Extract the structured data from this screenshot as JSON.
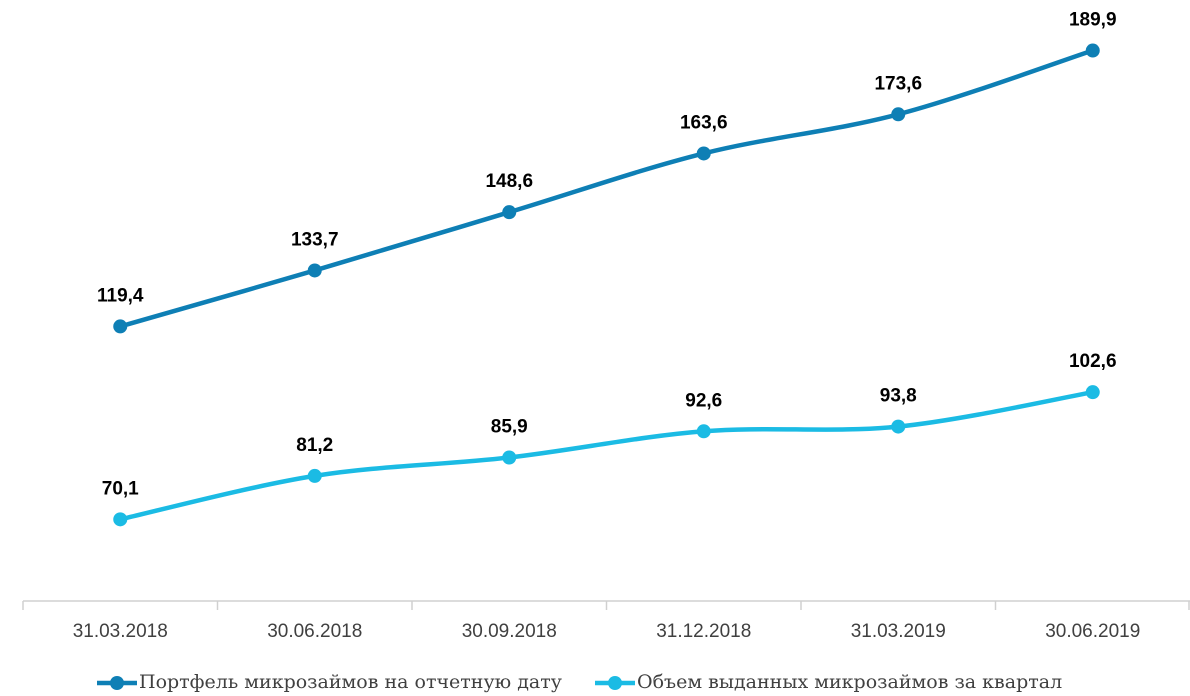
{
  "chart_data": {
    "type": "line",
    "categories": [
      "31.03.2018",
      "30.06.2018",
      "30.09.2018",
      "31.12.2018",
      "31.03.2019",
      "30.06.2019"
    ],
    "series": [
      {
        "name": "Портфель микрозаймов на отчетную дату",
        "color": "#0e7fb5",
        "values": [
          119.4,
          133.7,
          148.6,
          163.6,
          173.6,
          189.9
        ],
        "value_labels": [
          "119,4",
          "133,7",
          "148,6",
          "163,6",
          "173,6",
          "189,9"
        ]
      },
      {
        "name": "Объем выданных микрозаймов за квартал",
        "color": "#1bbbe4",
        "values": [
          70.1,
          81.2,
          85.9,
          92.6,
          93.8,
          102.6
        ],
        "value_labels": [
          "70,1",
          "81,2",
          "85,9",
          "92,6",
          "93,8",
          "102,6"
        ]
      }
    ],
    "ylim": [
      50,
      200
    ],
    "legend": "bottom"
  }
}
